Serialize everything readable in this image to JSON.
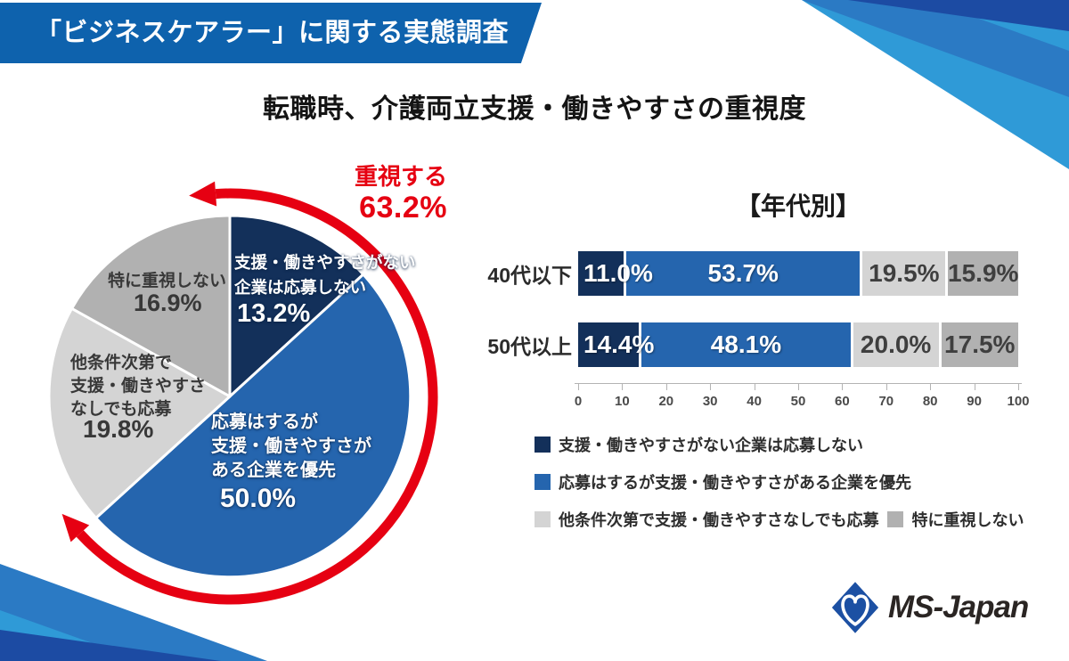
{
  "banner": {
    "title": "「ビジネスケアラー」に関する実態調査"
  },
  "page_title": "転職時、介護両立支援・働きやすさの重視度",
  "colors": {
    "banner_blue": "#0e62ad",
    "navy": "#13305a",
    "blue": "#2565ae",
    "light_gray": "#d4d4d4",
    "mid_gray": "#b1b1b1",
    "red": "#e60012",
    "decor_medium": "#2b7ac4",
    "decor_royal": "#1c4ba3",
    "decor_light": "#2f9ad7",
    "logo_blue": "#1c50a3",
    "logo_text": "#2a2523"
  },
  "chart_data": [
    {
      "type": "pie",
      "title": "転職時、介護両立支援・働きやすさの重視度",
      "labels": [
        "支援・働きやすさがない企業は応募しない",
        "応募はするが支援・働きやすさがある企業を優先",
        "他条件次第で支援・働きやすさなしでも応募",
        "特に重視しない"
      ],
      "values": [
        13.2,
        50.0,
        19.8,
        16.9
      ],
      "unit": "%",
      "start_angle_deg": 0,
      "direction": "clockwise",
      "annotation": {
        "label": "重視する",
        "value": 63.2,
        "display": "63.2%",
        "covers": "first two segments"
      }
    },
    {
      "type": "bar",
      "subtype": "horizontal-stacked",
      "title": "【年代別】",
      "categories": [
        "40代以下",
        "50代以上"
      ],
      "series": [
        {
          "name": "支援・働きやすさがない企業は応募しない",
          "values": [
            11.0,
            14.4
          ]
        },
        {
          "name": "応募はするが支援・働きやすさがある企業を優先",
          "values": [
            53.7,
            48.1
          ]
        },
        {
          "name": "他条件次第で支援・働きやすさなしでも応募",
          "values": [
            19.5,
            20.0
          ]
        },
        {
          "name": "特に重視しない",
          "values": [
            15.9,
            17.5
          ]
        }
      ],
      "xlim": [
        0,
        100
      ],
      "ticks": [
        0,
        10,
        20,
        30,
        40,
        50,
        60,
        70,
        80,
        90,
        100
      ],
      "legend_position": "bottom"
    }
  ],
  "pie_labels": {
    "seg1_line1": "支援・働きやすさがない",
    "seg1_line2": "企業は応募しない",
    "seg1_pct": "13.2%",
    "seg2_line1": "応募はするが",
    "seg2_line2": "支援・働きやすさが",
    "seg2_line3": "ある企業を優先",
    "seg2_pct": "50.0%",
    "seg3_line1": "他条件次第で",
    "seg3_line2": "支援・働きやすさ",
    "seg3_line3": "なしでも応募",
    "seg3_pct": "19.8%",
    "seg4_line1": "特に重視しない",
    "seg4_pct": "16.9%",
    "annotation_label": "重視する",
    "annotation_pct": "63.2%"
  },
  "logo": {
    "text": "MS-Japan"
  }
}
